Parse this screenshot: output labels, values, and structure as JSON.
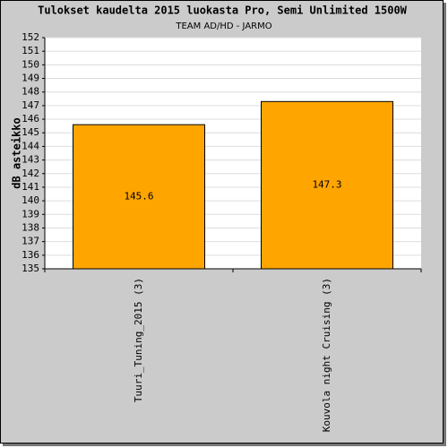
{
  "chart_data": {
    "type": "bar",
    "title": "Tulokset kaudelta 2015 luokasta Pro, Semi Unlimited 1500W",
    "subtitle": "TEAM AD/HD - JARMO",
    "y_label": "dB asteikko",
    "categories": [
      "Tuuri_Tuning_2015 (3)",
      "Kouvola night Cruising (3)"
    ],
    "values": [
      145.6,
      147.3
    ],
    "color": "#ffa500",
    "ylim": [
      135,
      152
    ],
    "yticks": [
      135,
      136,
      137,
      138,
      139,
      140,
      141,
      142,
      143,
      144,
      145,
      146,
      147,
      148,
      149,
      150,
      151,
      152
    ],
    "grid": true
  }
}
